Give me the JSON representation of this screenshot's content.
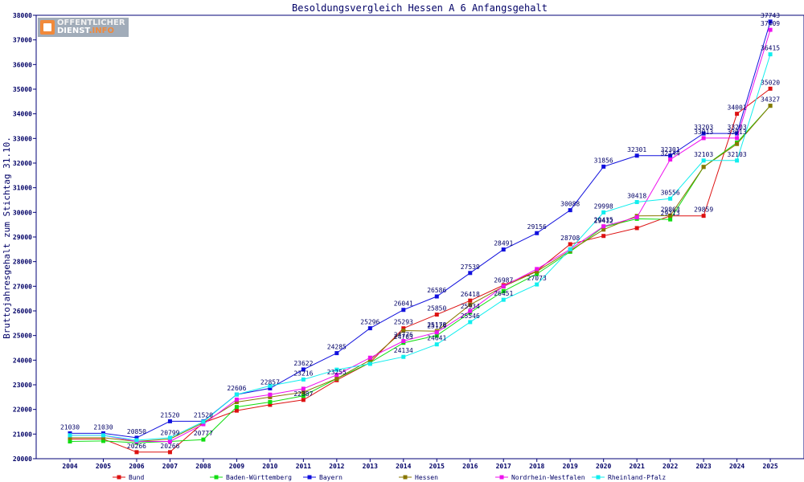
{
  "logo": {
    "line1": "OFFENTLICHER",
    "line2_a": "DIENST",
    "line2_b": ".INFO"
  },
  "chart_data": {
    "type": "line",
    "title": "Besoldungsvergleich Hessen A 6 Anfangsgehalt",
    "xlabel": "",
    "ylabel": "Bruttojahresgehalt zum Stichtag 31.10.",
    "ylim": [
      20000,
      38000
    ],
    "yticks": [
      "20000",
      "21000",
      "22000",
      "23000",
      "24000",
      "25000",
      "26000",
      "27000",
      "28000",
      "29000",
      "30000",
      "31000",
      "32000",
      "33000",
      "34000",
      "35000",
      "36000",
      "37000",
      "38000"
    ],
    "categories": [
      "2004",
      "2005",
      "2006",
      "2007",
      "2008",
      "2009",
      "2010",
      "2011",
      "2012",
      "2013",
      "2014",
      "2015",
      "2016",
      "2017",
      "2018",
      "2019",
      "2020",
      "2021",
      "2022",
      "2023",
      "2024",
      "2025"
    ],
    "grid": false,
    "legend_position": "bottom",
    "series": [
      {
        "name": "Bund",
        "color": "#dd1111",
        "values": [
          20800,
          20800,
          20266,
          20266,
          21461,
          21952,
          22187,
          22387,
          23188,
          23900,
          25293,
          25850,
          26418,
          27045,
          27622,
          28708,
          29042,
          29361,
          29859,
          29859,
          34001,
          35020
        ],
        "labels": [
          "",
          "",
          "20266",
          "20266",
          "",
          "",
          "",
          "22387",
          "",
          "",
          "25293",
          "25850",
          "26418",
          "",
          "",
          "28708",
          "",
          "",
          "",
          "29859",
          "34001",
          "35020"
        ]
      },
      {
        "name": "Baden-Württemberg",
        "color": "#11dd11",
        "values": [
          20700,
          20720,
          20650,
          20700,
          20777,
          22100,
          22300,
          22550,
          23250,
          23900,
          24703,
          25000,
          25934,
          26800,
          27500,
          28400,
          29412,
          29738,
          29713,
          31844,
          32832,
          34327
        ],
        "labels": [
          "",
          "",
          "",
          "",
          "20777",
          "",
          "",
          "",
          "",
          "",
          "24703",
          "",
          "25934",
          "",
          "",
          "",
          "29412",
          "",
          "29713",
          "",
          "",
          ""
        ]
      },
      {
        "name": "Bayern",
        "color": "#1111dd",
        "values": [
          21030,
          21030,
          20850,
          21520,
          21520,
          22606,
          22857,
          23622,
          24285,
          25296,
          26041,
          26586,
          27539,
          28491,
          29156,
          30088,
          31856,
          32301,
          32301,
          33203,
          33203,
          37743
        ],
        "labels": [
          "21030",
          "21030",
          "20850",
          "21520",
          "21520",
          "22606",
          "22857",
          "23622",
          "24285",
          "25296",
          "26041",
          "26586",
          "27539",
          "28491",
          "29156",
          "30088",
          "31856",
          "32301",
          "32301",
          "33203",
          "33203",
          "37743"
        ]
      },
      {
        "name": "Hessen",
        "color": "#887700",
        "values": [
          20850,
          20850,
          20700,
          20799,
          21461,
          22300,
          22500,
          22700,
          23255,
          24000,
          25200,
          25178,
          26250,
          26987,
          27600,
          28450,
          29300,
          29853,
          29863,
          31844,
          32775,
          34327
        ],
        "labels": [
          "",
          "",
          "",
          "20799",
          "",
          "",
          "",
          "",
          "23255",
          "",
          "",
          "25178",
          "",
          "26987",
          "",
          "",
          "",
          "",
          "29863",
          "",
          "",
          "34327"
        ]
      },
      {
        "name": "Nordrhein-Westfalen",
        "color": "#ee11ee",
        "values": [
          20950,
          20950,
          20700,
          20700,
          21400,
          22400,
          22600,
          22840,
          23400,
          24100,
          24776,
          25129,
          26000,
          27000,
          27700,
          28500,
          29435,
          29800,
          32144,
          33013,
          33013,
          37409
        ],
        "labels": [
          "",
          "",
          "",
          "",
          "",
          "",
          "",
          "",
          "",
          "",
          "24776",
          "25129",
          "",
          "",
          "",
          "",
          "29435",
          "",
          "32144",
          "33013",
          "33013",
          "37409"
        ]
      },
      {
        "name": "Rheinland-Pfalz",
        "color": "#11eeee",
        "values": [
          20950,
          20950,
          20750,
          20850,
          21501,
          22606,
          22957,
          23216,
          23614,
          23850,
          24134,
          24641,
          25546,
          26451,
          27073,
          28500,
          29998,
          30418,
          30556,
          32103,
          32103,
          36415
        ],
        "labels": [
          "",
          "",
          "",
          "",
          "",
          "",
          "",
          "23216",
          "",
          "",
          "24134",
          "24641",
          "25546",
          "26451",
          "27073",
          "",
          "29998",
          "30418",
          "30556",
          "32103",
          "32103",
          "36415"
        ]
      }
    ]
  }
}
